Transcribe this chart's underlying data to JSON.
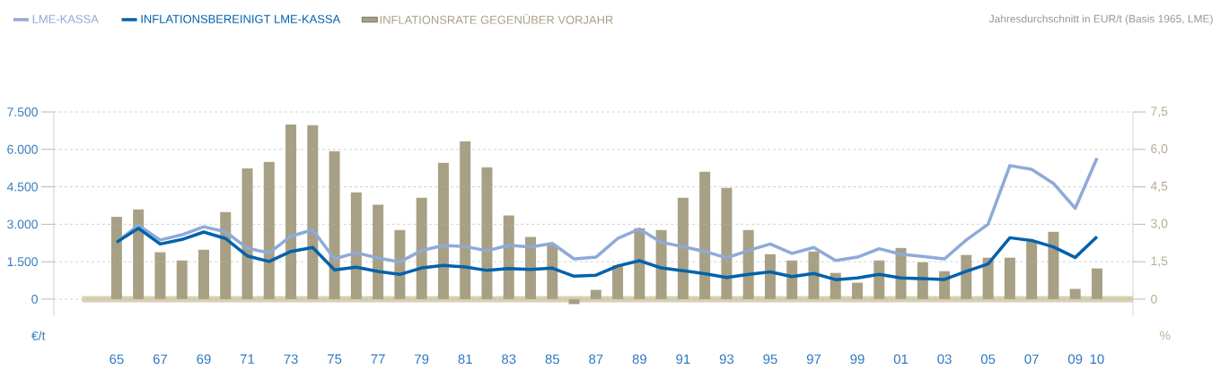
{
  "chart_data": {
    "type": "line",
    "categories": [
      "65",
      null,
      "67",
      null,
      "69",
      null,
      "71",
      null,
      "73",
      null,
      "75",
      null,
      "77",
      null,
      "79",
      null,
      "81",
      null,
      "83",
      null,
      "85",
      null,
      "87",
      null,
      "89",
      null,
      "91",
      null,
      "93",
      null,
      "95",
      null,
      "97",
      null,
      "99",
      null,
      "01",
      null,
      "03",
      null,
      "05",
      null,
      "07",
      null,
      "09",
      "10"
    ],
    "series": [
      {
        "name": "LME-KASSA",
        "color": "#8eaad8",
        "values": [
          2280,
          2960,
          2370,
          2580,
          2900,
          2700,
          2040,
          1850,
          2520,
          2780,
          1610,
          1860,
          1650,
          1490,
          1950,
          2150,
          2110,
          1940,
          2160,
          2090,
          2230,
          1610,
          1680,
          2430,
          2810,
          2280,
          2100,
          1910,
          1650,
          1950,
          2210,
          1830,
          2070,
          1550,
          1680,
          2020,
          1800,
          1710,
          1610,
          2370,
          3000,
          5350,
          5200,
          4640,
          3640,
          5650
        ]
      },
      {
        "name": "INFLATIONSBEREINIGT LME-KASSA",
        "color": "#0062ac",
        "values": [
          2280,
          2840,
          2210,
          2390,
          2690,
          2430,
          1730,
          1510,
          1910,
          2070,
          1170,
          1280,
          1110,
          990,
          1250,
          1350,
          1290,
          1150,
          1230,
          1190,
          1240,
          920,
          960,
          1330,
          1540,
          1250,
          1140,
          1020,
          870,
          990,
          1090,
          900,
          1030,
          780,
          850,
          990,
          850,
          820,
          790,
          1110,
          1410,
          2460,
          2350,
          2090,
          1670,
          2500
        ]
      },
      {
        "name": "INFLATIONSRATE GEGENÜBER VORJAHR",
        "type": "bar",
        "axis": "y2",
        "color": "#a8a084",
        "values": [
          3.3,
          3.6,
          1.88,
          1.55,
          1.98,
          3.49,
          5.24,
          5.5,
          7.0,
          6.97,
          5.93,
          4.28,
          3.78,
          2.77,
          4.06,
          5.46,
          6.32,
          5.28,
          3.35,
          2.49,
          2.16,
          -0.2,
          0.37,
          1.35,
          2.84,
          2.77,
          4.06,
          5.1,
          4.46,
          2.77,
          1.8,
          1.55,
          1.91,
          1.05,
          0.66,
          1.55,
          2.05,
          1.48,
          1.12,
          1.77,
          1.66,
          1.66,
          2.3,
          2.7,
          0.41,
          1.23
        ]
      }
    ],
    "ylabel": "€/t",
    "y2label": "%",
    "ylim": [
      -650,
      7500
    ],
    "yticks": [
      {
        "value": 0,
        "label": "0"
      },
      {
        "value": 1500,
        "label": "1.500"
      },
      {
        "value": 3000,
        "label": "3.000"
      },
      {
        "value": 4500,
        "label": "4.500"
      },
      {
        "value": 6000,
        "label": "6.000"
      },
      {
        "value": 7500,
        "label": "7.500"
      }
    ],
    "y2lim": [
      -0.65,
      7.5
    ],
    "y2ticks": [
      {
        "value": 0,
        "label": "0"
      },
      {
        "value": 1.5,
        "label": "1,5"
      },
      {
        "value": 3.0,
        "label": "3,0"
      },
      {
        "value": 4.5,
        "label": "4,5"
      },
      {
        "value": 6.0,
        "label": "6,0"
      },
      {
        "value": 7.5,
        "label": "7,5"
      }
    ],
    "ref_lines": [
      {
        "axis": "y2",
        "value": 0,
        "color": "#d9cfb2"
      }
    ],
    "annotations": [
      "Jahresdurchschnitt in EUR/t (Basis 1965, LME)"
    ],
    "grid": "y",
    "legend": "top left",
    "marker": "none",
    "line_style": "solid"
  }
}
